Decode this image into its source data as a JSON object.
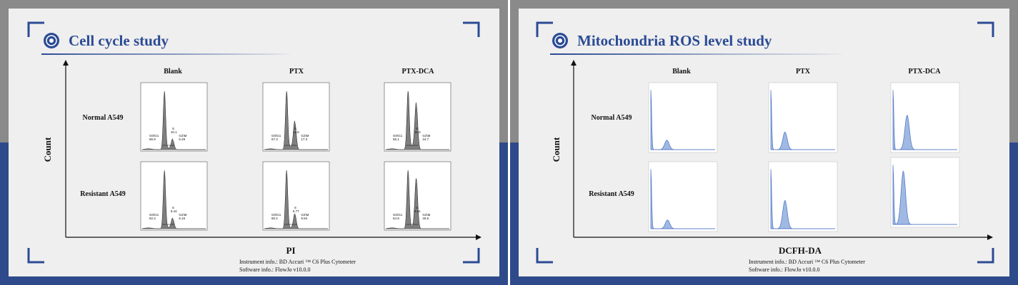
{
  "colors": {
    "title_blue": "#2b4b94",
    "frame": "#2b4b94",
    "flow_fill": "#7f7f7f",
    "ros_fill": "#9fb9e3",
    "ros_line": "#4a72c4"
  },
  "left": {
    "title": "Cell cycle study",
    "icon": "cell-logo-icon",
    "y_axis_label": "Count",
    "x_axis_label": "PI",
    "columns": [
      "Blank",
      "PTX",
      "PTX-DCA"
    ],
    "rows": [
      "Normal A549",
      "Resistant A549"
    ],
    "footer": {
      "instrument": "Instrument info.:  BD Accuri ™ C6 Plus Cytometer",
      "software": "Software info.:  FlowJo v10.0.0"
    }
  },
  "right": {
    "title": "Mitochondria ROS level study",
    "icon": "cell-logo-icon",
    "y_axis_label": "Count",
    "x_axis_label": "DCFH-DA",
    "columns": [
      "Blank",
      "PTX",
      "PTX-DCA"
    ],
    "rows": [
      "Normal A549",
      "Resistant A549"
    ],
    "footer": {
      "instrument": "Instrument info.:  BD Accuri ™ C6 Plus Cytometer",
      "software": "Software info.:  FlowJo v10.0.0"
    }
  },
  "chart_data": [
    {
      "type": "area",
      "title": "Cell cycle study",
      "xlabel": "PI",
      "ylabel": "Count",
      "panels": [
        {
          "row": "Normal A549",
          "column": "Blank",
          "g0g1_label": "G0\\G1",
          "g0g1": "86.9",
          "s_label": "S",
          "s": "10.1",
          "g2m_label": "G2\\M",
          "g2m": "6.29"
        },
        {
          "row": "Normal A549",
          "column": "PTX",
          "g0g1_label": "G0\\G1",
          "g0g1": "67.3",
          "s_label": "S",
          "s": "13.8",
          "g2m_label": "G2\\M",
          "g2m": "17.3"
        },
        {
          "row": "Normal A549",
          "column": "PTX-DCA",
          "g0g1_label": "G0\\G1",
          "g0g1": "55.1",
          "s_label": "S",
          "s": "15.8",
          "g2m_label": "G2\\M",
          "g2m": "24.7"
        },
        {
          "row": "Resistant A549",
          "column": "Blank",
          "g0g1_label": "G0\\G1",
          "g0g1": "82.4",
          "s_label": "S",
          "s": "8.44",
          "g2m_label": "G2\\M",
          "g2m": "6.16"
        },
        {
          "row": "Resistant A549",
          "column": "PTX",
          "g0g1_label": "G0\\G1",
          "g0g1": "80.2",
          "s_label": "S",
          "s": "5.77",
          "g2m_label": "G2\\M",
          "g2m": "9.94"
        },
        {
          "row": "Resistant A549",
          "column": "PTX-DCA",
          "g0g1_label": "G0\\G1",
          "g0g1": "54.9",
          "s_label": "S",
          "s": "8.54",
          "g2m_label": "G2\\M",
          "g2m": "29.6"
        }
      ]
    },
    {
      "type": "area",
      "title": "Mitochondria ROS level study",
      "xlabel": "DCFH-DA",
      "ylabel": "Count",
      "panels": [
        {
          "row": "Normal A549",
          "column": "Blank",
          "peak_position": 0.25,
          "peak_height": 0.15
        },
        {
          "row": "Normal A549",
          "column": "PTX",
          "peak_position": 0.22,
          "peak_height": 0.28
        },
        {
          "row": "Normal A549",
          "column": "PTX-DCA",
          "peak_position": 0.22,
          "peak_height": 0.55
        },
        {
          "row": "Resistant A549",
          "column": "Blank",
          "peak_position": 0.26,
          "peak_height": 0.14
        },
        {
          "row": "Resistant A549",
          "column": "PTX",
          "peak_position": 0.22,
          "peak_height": 0.45
        },
        {
          "row": "Resistant A549",
          "column": "PTX-DCA",
          "peak_position": 0.16,
          "peak_height": 0.85
        }
      ]
    }
  ]
}
